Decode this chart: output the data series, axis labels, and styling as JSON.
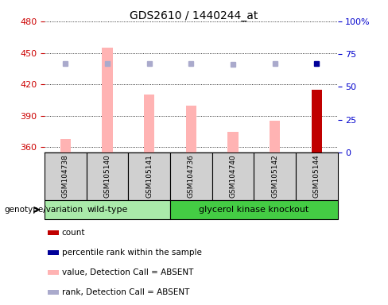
{
  "title": "GDS2610 / 1440244_at",
  "samples": [
    "GSM104738",
    "GSM105140",
    "GSM105141",
    "GSM104736",
    "GSM104740",
    "GSM105142",
    "GSM105144"
  ],
  "groups": [
    "wild-type",
    "wild-type",
    "wild-type",
    "glycerol kinase knockout",
    "glycerol kinase knockout",
    "glycerol kinase knockout",
    "glycerol kinase knockout"
  ],
  "bar_values": [
    368,
    455,
    410,
    400,
    375,
    385,
    415
  ],
  "bar_absent": [
    true,
    true,
    true,
    true,
    true,
    true,
    false
  ],
  "rank_values": [
    68,
    68,
    68,
    68,
    67,
    68,
    68
  ],
  "rank_absent": [
    true,
    true,
    true,
    true,
    true,
    true,
    false
  ],
  "ylim_left": [
    355,
    480
  ],
  "ylim_right": [
    0,
    100
  ],
  "yticks_left": [
    360,
    390,
    420,
    450,
    480
  ],
  "yticks_right": [
    0,
    25,
    50,
    75,
    100
  ],
  "bar_color_absent": "#ffb3b3",
  "bar_color_present": "#c00000",
  "rank_color_absent": "#aaaacc",
  "rank_color_present": "#000099",
  "group_colors": {
    "wild-type": "#aaeaaa",
    "glycerol kinase knockout": "#44cc44"
  },
  "legend_items": [
    {
      "label": "count",
      "color": "#c00000"
    },
    {
      "label": "percentile rank within the sample",
      "color": "#000099"
    },
    {
      "label": "value, Detection Call = ABSENT",
      "color": "#ffb3b3"
    },
    {
      "label": "rank, Detection Call = ABSENT",
      "color": "#aaaacc"
    }
  ],
  "genotype_label": "genotype/variation",
  "bg_color": "#ffffff",
  "plot_bg": "#ffffff",
  "grid_color": "#000000",
  "tick_label_color_left": "#cc0000",
  "tick_label_color_right": "#0000cc",
  "sample_bg": "#d0d0d0"
}
